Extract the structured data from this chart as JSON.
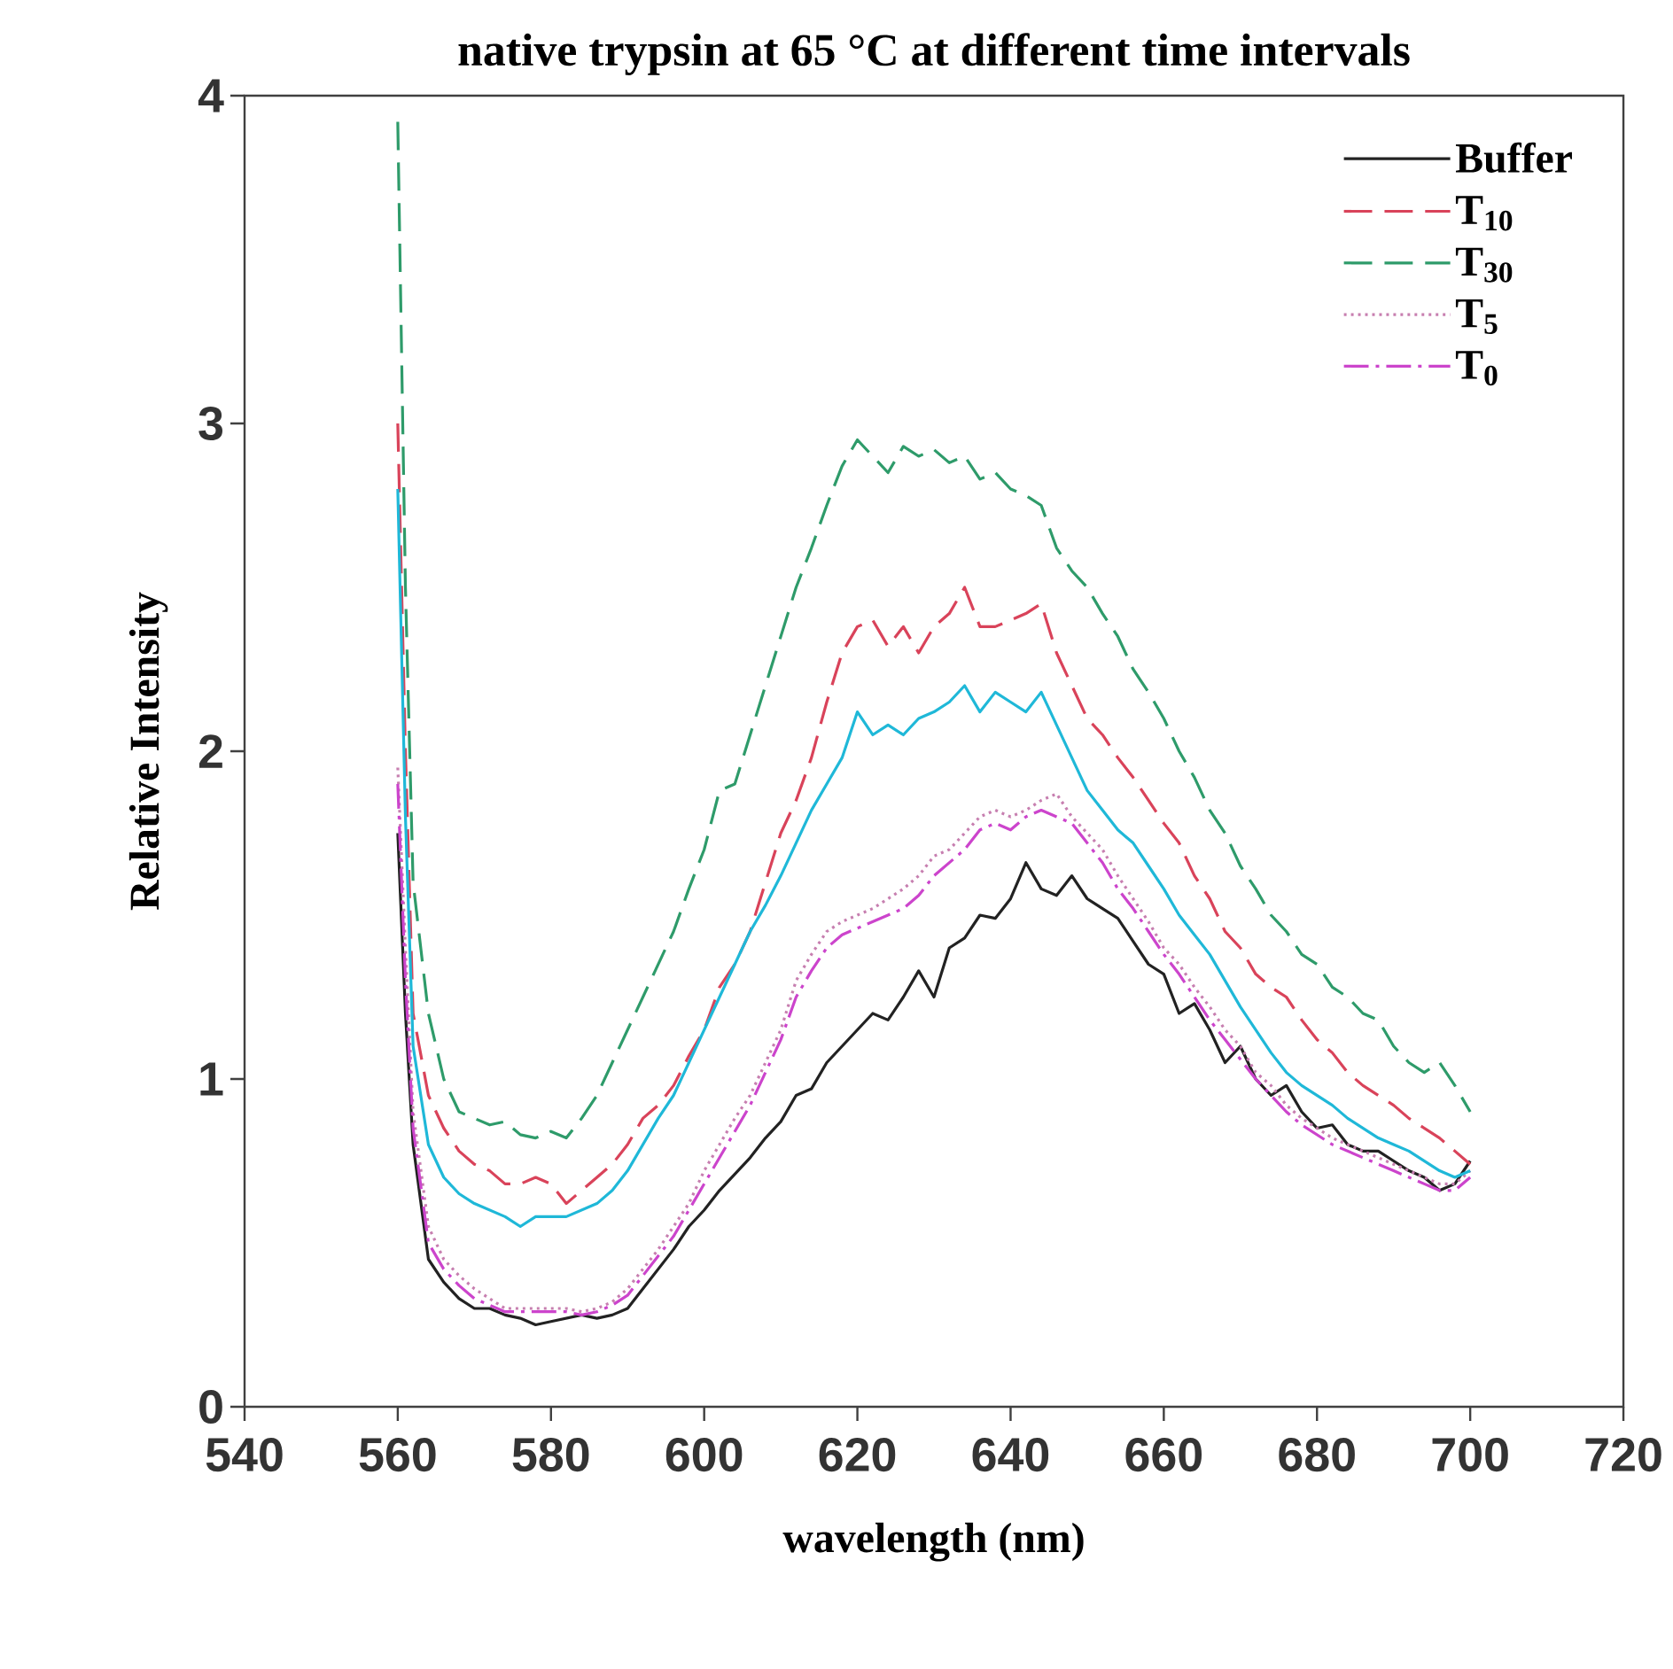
{
  "chart_data": {
    "type": "line",
    "title": "native trypsin at 65 °C at different time intervals",
    "xlabel": "wavelength (nm)",
    "ylabel": "Relative Intensity",
    "xlim": [
      540,
      720
    ],
    "xticks": [
      540,
      560,
      580,
      600,
      620,
      640,
      660,
      680,
      700,
      720
    ],
    "ylim": [
      0,
      4
    ],
    "yticks": [
      0,
      1,
      2,
      3,
      4
    ],
    "grid": false,
    "legend": "top right",
    "marker": "none",
    "x": [
      560,
      561,
      562,
      564,
      566,
      568,
      570,
      572,
      574,
      576,
      578,
      580,
      582,
      584,
      586,
      588,
      590,
      592,
      594,
      596,
      598,
      600,
      602,
      604,
      606,
      608,
      610,
      612,
      614,
      616,
      618,
      620,
      622,
      624,
      626,
      628,
      630,
      632,
      634,
      636,
      638,
      640,
      642,
      644,
      646,
      648,
      650,
      652,
      654,
      656,
      658,
      660,
      662,
      664,
      666,
      668,
      670,
      672,
      674,
      676,
      678,
      680,
      682,
      684,
      686,
      688,
      690,
      692,
      694,
      696,
      698,
      700
    ],
    "series": [
      {
        "name": "Buffer",
        "color": "#222222",
        "line_style": "solid",
        "values": [
          1.75,
          1.2,
          0.8,
          0.45,
          0.38,
          0.33,
          0.3,
          0.3,
          0.28,
          0.27,
          0.25,
          0.26,
          0.27,
          0.28,
          0.27,
          0.28,
          0.3,
          0.36,
          0.42,
          0.48,
          0.55,
          0.6,
          0.66,
          0.71,
          0.76,
          0.82,
          0.87,
          0.95,
          0.97,
          1.05,
          1.1,
          1.15,
          1.2,
          1.18,
          1.25,
          1.33,
          1.25,
          1.4,
          1.43,
          1.5,
          1.49,
          1.55,
          1.66,
          1.58,
          1.56,
          1.62,
          1.55,
          1.52,
          1.49,
          1.42,
          1.35,
          1.32,
          1.2,
          1.23,
          1.15,
          1.05,
          1.1,
          1.0,
          0.95,
          0.98,
          0.9,
          0.85,
          0.86,
          0.8,
          0.78,
          0.78,
          0.75,
          0.72,
          0.7,
          0.66,
          0.68,
          0.75
        ]
      },
      {
        "name": "T$_{10}$",
        "color": "#d9435a",
        "line_style": "dashed",
        "values": [
          3.0,
          2.0,
          1.2,
          0.95,
          0.85,
          0.78,
          0.74,
          0.72,
          0.68,
          0.68,
          0.7,
          0.68,
          0.62,
          0.66,
          0.7,
          0.74,
          0.8,
          0.88,
          0.92,
          0.98,
          1.07,
          1.15,
          1.28,
          1.35,
          1.45,
          1.6,
          1.75,
          1.85,
          1.98,
          2.15,
          2.3,
          2.38,
          2.4,
          2.32,
          2.38,
          2.3,
          2.38,
          2.42,
          2.5,
          2.38,
          2.38,
          2.4,
          2.42,
          2.45,
          2.3,
          2.2,
          2.1,
          2.05,
          1.98,
          1.92,
          1.85,
          1.78,
          1.72,
          1.62,
          1.55,
          1.45,
          1.4,
          1.32,
          1.28,
          1.25,
          1.18,
          1.12,
          1.08,
          1.02,
          0.98,
          0.95,
          0.92,
          0.88,
          0.85,
          0.82,
          0.78,
          0.74
        ]
      },
      {
        "name": "T$_{30}$",
        "color": "#2e9b6a",
        "line_style": "dashed",
        "values": [
          3.92,
          2.5,
          1.6,
          1.2,
          1.0,
          0.9,
          0.88,
          0.86,
          0.87,
          0.83,
          0.82,
          0.84,
          0.82,
          0.88,
          0.95,
          1.05,
          1.15,
          1.25,
          1.35,
          1.45,
          1.58,
          1.7,
          1.88,
          1.9,
          2.05,
          2.2,
          2.35,
          2.5,
          2.62,
          2.75,
          2.87,
          2.95,
          2.9,
          2.85,
          2.93,
          2.9,
          2.92,
          2.88,
          2.9,
          2.83,
          2.85,
          2.8,
          2.78,
          2.75,
          2.62,
          2.55,
          2.5,
          2.42,
          2.35,
          2.25,
          2.18,
          2.1,
          2.0,
          1.92,
          1.82,
          1.75,
          1.65,
          1.58,
          1.5,
          1.45,
          1.38,
          1.35,
          1.28,
          1.25,
          1.2,
          1.18,
          1.1,
          1.05,
          1.02,
          1.05,
          0.98,
          0.9
        ]
      },
      {
        "name": "T$_{5}$",
        "color": "#c77fb0",
        "line_style": "dotted",
        "values": [
          1.95,
          1.4,
          0.9,
          0.55,
          0.45,
          0.4,
          0.36,
          0.33,
          0.3,
          0.3,
          0.3,
          0.3,
          0.3,
          0.29,
          0.3,
          0.32,
          0.36,
          0.42,
          0.48,
          0.55,
          0.62,
          0.72,
          0.8,
          0.88,
          0.95,
          1.05,
          1.15,
          1.3,
          1.38,
          1.45,
          1.48,
          1.5,
          1.52,
          1.55,
          1.58,
          1.62,
          1.68,
          1.7,
          1.75,
          1.8,
          1.82,
          1.8,
          1.82,
          1.85,
          1.87,
          1.8,
          1.75,
          1.7,
          1.62,
          1.55,
          1.48,
          1.4,
          1.35,
          1.28,
          1.22,
          1.15,
          1.1,
          1.02,
          0.98,
          0.92,
          0.88,
          0.85,
          0.82,
          0.8,
          0.78,
          0.76,
          0.74,
          0.72,
          0.7,
          0.68,
          0.68,
          0.72
        ]
      },
      {
        "name": "T$_{0}$",
        "color": "#cc44cc",
        "line_style": "dashdot",
        "values": [
          1.9,
          1.3,
          0.85,
          0.5,
          0.42,
          0.37,
          0.33,
          0.31,
          0.29,
          0.29,
          0.29,
          0.29,
          0.29,
          0.28,
          0.29,
          0.31,
          0.34,
          0.4,
          0.46,
          0.52,
          0.6,
          0.68,
          0.76,
          0.84,
          0.92,
          1.02,
          1.12,
          1.25,
          1.33,
          1.4,
          1.44,
          1.46,
          1.48,
          1.5,
          1.52,
          1.56,
          1.62,
          1.66,
          1.7,
          1.76,
          1.78,
          1.76,
          1.8,
          1.82,
          1.8,
          1.78,
          1.72,
          1.66,
          1.58,
          1.52,
          1.45,
          1.38,
          1.32,
          1.25,
          1.18,
          1.12,
          1.06,
          1.0,
          0.95,
          0.9,
          0.86,
          0.83,
          0.8,
          0.78,
          0.76,
          0.74,
          0.72,
          0.7,
          0.68,
          0.66,
          0.66,
          0.7
        ]
      },
      {
        "color": "#1fb8d8",
        "line_style": "solid",
        "values": [
          2.8,
          1.8,
          1.1,
          0.8,
          0.7,
          0.65,
          0.62,
          0.6,
          0.58,
          0.55,
          0.58,
          0.58,
          0.58,
          0.6,
          0.62,
          0.66,
          0.72,
          0.8,
          0.88,
          0.95,
          1.05,
          1.15,
          1.25,
          1.35,
          1.45,
          1.53,
          1.62,
          1.72,
          1.82,
          1.9,
          1.98,
          2.12,
          2.05,
          2.08,
          2.05,
          2.1,
          2.12,
          2.15,
          2.2,
          2.12,
          2.18,
          2.15,
          2.12,
          2.18,
          2.08,
          1.98,
          1.88,
          1.82,
          1.76,
          1.72,
          1.65,
          1.58,
          1.5,
          1.44,
          1.38,
          1.3,
          1.22,
          1.15,
          1.08,
          1.02,
          0.98,
          0.95,
          0.92,
          0.88,
          0.85,
          0.82,
          0.8,
          0.78,
          0.75,
          0.72,
          0.7,
          0.72
        ]
      }
    ]
  }
}
